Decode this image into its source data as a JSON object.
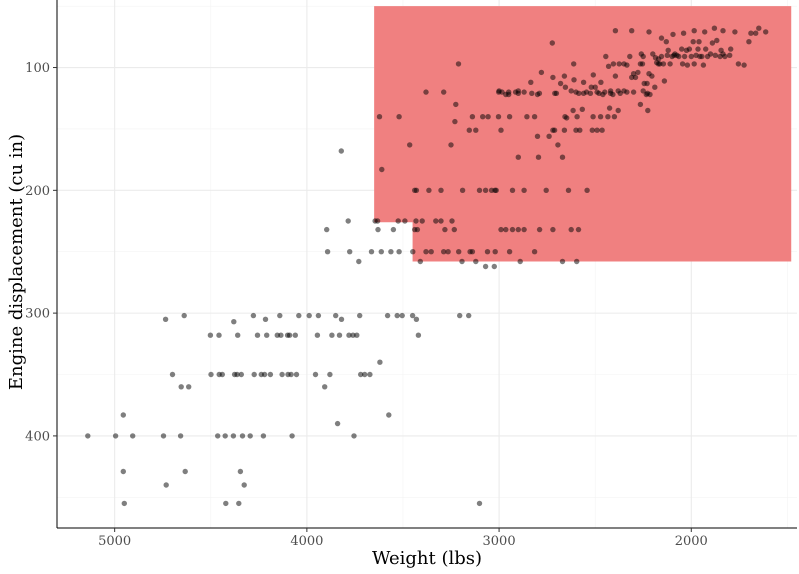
{
  "chart_data": {
    "type": "scatter",
    "title": "",
    "xlabel": "Weight (lbs)",
    "ylabel": "Engine displacement (cu in)",
    "x_reversed": true,
    "y_reversed": true,
    "xlim": [
      5300,
      1450
    ],
    "ylim": [
      475,
      45
    ],
    "x_ticks": [
      5000,
      4000,
      3000,
      2000
    ],
    "y_ticks": [
      100,
      200,
      300,
      400
    ],
    "grid": true,
    "point_color": "#000000",
    "point_opacity": 0.5,
    "highlight_color": "#f08080",
    "highlight_region": {
      "x_left": 3650,
      "x_right": 1480,
      "y_top": 50,
      "y_bottom": 258,
      "notch": {
        "x_left": 3650,
        "x_right": 3450,
        "y_top": 226,
        "y_bottom": 258
      }
    },
    "points": [
      [
        5140,
        400
      ],
      [
        4995,
        400
      ],
      [
        4955,
        383
      ],
      [
        4955,
        429
      ],
      [
        4950,
        455
      ],
      [
        4906,
        400
      ],
      [
        4746,
        400
      ],
      [
        4735,
        305
      ],
      [
        4732,
        440
      ],
      [
        4699,
        350
      ],
      [
        4657,
        400
      ],
      [
        4654,
        360
      ],
      [
        4638,
        302
      ],
      [
        4633,
        429
      ],
      [
        4615,
        360
      ],
      [
        4502,
        318
      ],
      [
        4499,
        350
      ],
      [
        4464,
        400
      ],
      [
        4457,
        318
      ],
      [
        4456,
        350
      ],
      [
        4440,
        350
      ],
      [
        4422,
        455
      ],
      [
        4425,
        400
      ],
      [
        4382,
        400
      ],
      [
        4380,
        307
      ],
      [
        4376,
        350
      ],
      [
        4363,
        350
      ],
      [
        4360,
        318
      ],
      [
        4354,
        455
      ],
      [
        4346,
        429
      ],
      [
        4341,
        350
      ],
      [
        4335,
        400
      ],
      [
        4326,
        440
      ],
      [
        4295,
        400
      ],
      [
        4278,
        302
      ],
      [
        4274,
        350
      ],
      [
        4257,
        318
      ],
      [
        4237,
        350
      ],
      [
        4226,
        400
      ],
      [
        4220,
        350
      ],
      [
        4215,
        305
      ],
      [
        4209,
        318
      ],
      [
        4190,
        350
      ],
      [
        4154,
        318
      ],
      [
        4141,
        302
      ],
      [
        4135,
        318
      ],
      [
        4129,
        350
      ],
      [
        4100,
        318
      ],
      [
        4098,
        350
      ],
      [
        4090,
        318
      ],
      [
        4082,
        350
      ],
      [
        4077,
        400
      ],
      [
        4060,
        318
      ],
      [
        4054,
        350
      ],
      [
        4042,
        302
      ],
      [
        3988,
        302
      ],
      [
        3955,
        350
      ],
      [
        3945,
        318
      ],
      [
        3940,
        302
      ],
      [
        3907,
        360
      ],
      [
        3897,
        232
      ],
      [
        3892,
        250
      ],
      [
        3880,
        350
      ],
      [
        3870,
        318
      ],
      [
        3850,
        302
      ],
      [
        3840,
        390
      ],
      [
        3830,
        318
      ],
      [
        3821,
        168
      ],
      [
        3820,
        305
      ],
      [
        3785,
        225
      ],
      [
        3781,
        318
      ],
      [
        3777,
        250
      ],
      [
        3760,
        318
      ],
      [
        3755,
        400
      ],
      [
        3740,
        318
      ],
      [
        3730,
        258
      ],
      [
        3725,
        302
      ],
      [
        3720,
        350
      ],
      [
        3699,
        350
      ],
      [
        3672,
        350
      ],
      [
        3664,
        250
      ],
      [
        3645,
        225
      ],
      [
        3632,
        225
      ],
      [
        3630,
        232
      ],
      [
        3620,
        340
      ],
      [
        3613,
        250
      ],
      [
        3580,
        302
      ],
      [
        3574,
        383
      ],
      [
        3563,
        250
      ],
      [
        3550,
        232
      ],
      [
        3530,
        302
      ],
      [
        3525,
        225
      ],
      [
        3520,
        250
      ],
      [
        3504,
        302
      ],
      [
        3490,
        225
      ],
      [
        3450,
        302
      ],
      [
        3449,
        250
      ],
      [
        3439,
        232
      ],
      [
        3432,
        225
      ],
      [
        3430,
        305
      ],
      [
        3425,
        232
      ],
      [
        3420,
        318
      ],
      [
        3410,
        258
      ],
      [
        3400,
        225
      ],
      [
        3380,
        250
      ],
      [
        3353,
        250
      ],
      [
        3329,
        225
      ],
      [
        3302,
        225
      ],
      [
        3288,
        250
      ],
      [
        3282,
        232
      ],
      [
        3265,
        250
      ],
      [
        3245,
        225
      ],
      [
        3233,
        232
      ],
      [
        3210,
        250
      ],
      [
        3205,
        302
      ],
      [
        3193,
        258
      ],
      [
        3158,
        302
      ],
      [
        3151,
        250
      ],
      [
        3139,
        250
      ],
      [
        3121,
        258
      ],
      [
        3102,
        455
      ],
      [
        3070,
        262
      ],
      [
        3060,
        250
      ],
      [
        3025,
        262
      ],
      [
        3020,
        250
      ],
      [
        3015,
        200
      ],
      [
        2990,
        232
      ],
      [
        2965,
        232
      ],
      [
        2945,
        250
      ],
      [
        2930,
        232
      ],
      [
        2900,
        232
      ],
      [
        2890,
        258
      ],
      [
        2870,
        232
      ],
      [
        2815,
        250
      ],
      [
        2789,
        232
      ],
      [
        2720,
        232
      ],
      [
        2670,
        258
      ],
      [
        2625,
        232
      ],
      [
        2596,
        258
      ],
      [
        2587,
        232
      ],
      [
        3622,
        140
      ],
      [
        3610,
        183
      ],
      [
        3520,
        140
      ],
      [
        3465,
        163
      ],
      [
        3439,
        200
      ],
      [
        3430,
        200
      ],
      [
        3380,
        120
      ],
      [
        3365,
        200
      ],
      [
        3302,
        200
      ],
      [
        3288,
        120
      ],
      [
        3250,
        163
      ],
      [
        3225,
        130
      ],
      [
        3211,
        97
      ],
      [
        3190,
        200
      ],
      [
        3155,
        151
      ],
      [
        3139,
        140
      ],
      [
        3121,
        151
      ],
      [
        3102,
        200
      ],
      [
        3085,
        140
      ],
      [
        3070,
        200
      ],
      [
        3057,
        140
      ],
      [
        3039,
        200
      ],
      [
        3021,
        200
      ],
      [
        3003,
        140
      ],
      [
        2990,
        151
      ],
      [
        2985,
        120
      ],
      [
        2965,
        122
      ],
      [
        2950,
        122
      ],
      [
        2945,
        140
      ],
      [
        2930,
        200
      ],
      [
        2914,
        120
      ],
      [
        2900,
        173
      ],
      [
        2900,
        121
      ],
      [
        2870,
        120
      ],
      [
        2870,
        200
      ],
      [
        2855,
        140
      ],
      [
        2830,
        121
      ],
      [
        2815,
        140
      ],
      [
        2800,
        156
      ],
      [
        2795,
        173
      ],
      [
        2790,
        121
      ],
      [
        2755,
        200
      ],
      [
        2740,
        156
      ],
      [
        2723,
        80
      ],
      [
        2720,
        151
      ],
      [
        2711,
        151
      ],
      [
        2702,
        121
      ],
      [
        2694,
        163
      ],
      [
        2670,
        173
      ],
      [
        2660,
        151
      ],
      [
        2657,
        140
      ],
      [
        2648,
        141
      ],
      [
        2639,
        200
      ],
      [
        2625,
        119
      ],
      [
        2615,
        135
      ],
      [
        2600,
        151
      ],
      [
        2594,
        140
      ],
      [
        2585,
        121
      ],
      [
        2580,
        151
      ],
      [
        2567,
        134
      ],
      [
        2560,
        121
      ],
      [
        2545,
        120
      ],
      [
        2542,
        200
      ],
      [
        2525,
        121
      ],
      [
        2515,
        151
      ],
      [
        2511,
        140
      ],
      [
        2500,
        116
      ],
      [
        2490,
        151
      ],
      [
        2480,
        121
      ],
      [
        2472,
        140
      ],
      [
        2464,
        151
      ],
      [
        2450,
        120
      ],
      [
        2434,
        140
      ],
      [
        2425,
        133
      ],
      [
        2420,
        119
      ],
      [
        2408,
        122
      ],
      [
        2400,
        140
      ],
      [
        2395,
        107
      ],
      [
        2380,
        135
      ],
      [
        2370,
        121
      ],
      [
        2350,
        97
      ],
      [
        2335,
        120
      ],
      [
        2320,
        91
      ],
      [
        2310,
        108
      ],
      [
        2300,
        120
      ],
      [
        2290,
        108
      ],
      [
        2278,
        104
      ],
      [
        2265,
        97
      ],
      [
        2254,
        97
      ],
      [
        2250,
        119
      ],
      [
        2245,
        113
      ],
      [
        2234,
        122
      ],
      [
        2228,
        121
      ],
      [
        2226,
        135
      ],
      [
        2220,
        105
      ],
      [
        2215,
        122
      ],
      [
        2205,
        107
      ],
      [
        2200,
        89
      ],
      [
        2190,
        116
      ],
      [
        2171,
        97
      ],
      [
        2164,
        97
      ],
      [
        2155,
        91
      ],
      [
        2145,
        97
      ],
      [
        2130,
        79
      ],
      [
        2125,
        90
      ],
      [
        2110,
        97
      ],
      [
        2100,
        91
      ],
      [
        2085,
        89
      ],
      [
        2075,
        90
      ],
      [
        2065,
        91
      ],
      [
        2050,
        85
      ],
      [
        2045,
        97
      ],
      [
        2035,
        91
      ],
      [
        2025,
        86
      ],
      [
        2020,
        98
      ],
      [
        2000,
        91
      ],
      [
        1990,
        79
      ],
      [
        1985,
        97
      ],
      [
        1975,
        90
      ],
      [
        1965,
        85
      ],
      [
        1955,
        91
      ],
      [
        1945,
        91
      ],
      [
        1937,
        98
      ],
      [
        1925,
        85
      ],
      [
        1915,
        91
      ],
      [
        1900,
        89
      ],
      [
        1875,
        90
      ],
      [
        1867,
        78
      ],
      [
        1850,
        91
      ],
      [
        1845,
        86
      ],
      [
        1835,
        89
      ],
      [
        1825,
        91
      ],
      [
        1800,
        90
      ],
      [
        1795,
        85
      ],
      [
        1773,
        71
      ],
      [
        1755,
        97
      ],
      [
        1725,
        98
      ],
      [
        1700,
        79
      ],
      [
        1690,
        72
      ],
      [
        1665,
        72
      ],
      [
        1649,
        68
      ],
      [
        1613,
        71
      ],
      [
        2140,
        111
      ],
      [
        2180,
        96
      ],
      [
        2230,
        113
      ],
      [
        2260,
        89
      ],
      [
        2300,
        105
      ],
      [
        2350,
        119
      ],
      [
        2380,
        119
      ],
      [
        2420,
        121
      ],
      [
        2460,
        122
      ],
      [
        2490,
        120
      ],
      [
        2520,
        116
      ],
      [
        2600,
        120
      ],
      [
        2655,
        116
      ],
      [
        2680,
        113
      ],
      [
        2710,
        121
      ],
      [
        2800,
        122
      ],
      [
        2900,
        119
      ],
      [
        2950,
        120
      ],
      [
        3000,
        119
      ],
      [
        2780,
        104
      ],
      [
        2720,
        108
      ],
      [
        2660,
        107
      ],
      [
        2610,
        110
      ],
      [
        2560,
        112
      ],
      [
        2510,
        106
      ],
      [
        2470,
        112
      ],
      [
        2430,
        99
      ],
      [
        2395,
        70
      ],
      [
        2310,
        70
      ],
      [
        2220,
        71
      ],
      [
        2155,
        76
      ],
      [
        2095,
        73
      ],
      [
        2040,
        72
      ],
      [
        1985,
        70
      ],
      [
        1930,
        71
      ],
      [
        1880,
        68
      ],
      [
        1835,
        70
      ],
      [
        2010,
        85
      ],
      [
        1960,
        79
      ],
      [
        1890,
        80
      ],
      [
        2090,
        90
      ],
      [
        2120,
        86
      ],
      [
        2170,
        93
      ],
      [
        2250,
        91
      ],
      [
        2335,
        98
      ],
      [
        2375,
        97
      ],
      [
        2405,
        97
      ],
      [
        2445,
        91
      ],
      [
        2265,
        130
      ],
      [
        3002,
        120
      ],
      [
        3230,
        144
      ],
      [
        2835,
        112
      ],
      [
        2612,
        97
      ],
      [
        2186,
        92
      ]
    ]
  }
}
